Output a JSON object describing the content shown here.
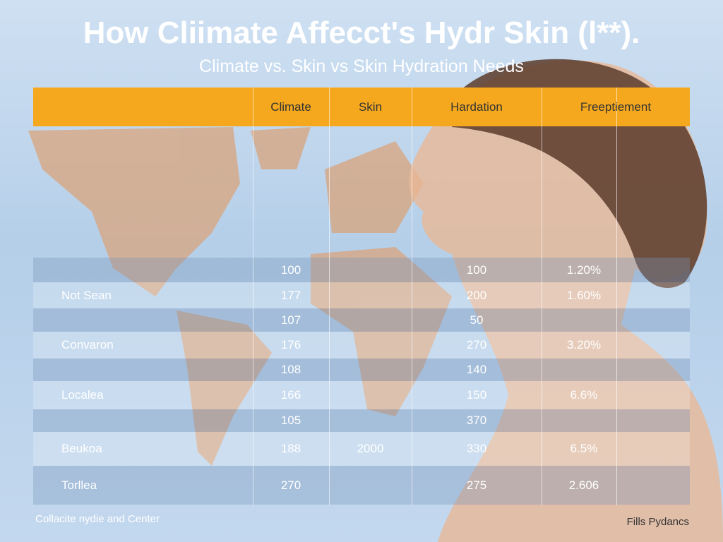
{
  "header": {
    "title": "How Cliimate Affecct's Hydr Skin (l**).",
    "subtitle": "Climate vs. Skin vs Skin Hydration Needs"
  },
  "table": {
    "columns": [
      null,
      "Climate",
      "Skin",
      "Hardation",
      "Freeptiement"
    ],
    "rows": [
      [
        null,
        "100",
        null,
        "100",
        "1.20%"
      ],
      [
        "Not Sean",
        "177",
        null,
        "200",
        "1.60%"
      ],
      [
        null,
        "107",
        null,
        "50",
        null
      ],
      [
        "Convaron",
        "176",
        null,
        "270",
        "3.20%"
      ],
      [
        null,
        "108",
        null,
        "140",
        null
      ],
      [
        "Localea",
        "166",
        null,
        "150",
        "6.6%"
      ],
      [
        null,
        "105",
        null,
        "370",
        null
      ],
      [
        "Beukoa",
        "188",
        "2000",
        "330",
        "6.5%"
      ],
      [
        "Torllea",
        "270",
        null,
        "275",
        "2.606"
      ]
    ]
  },
  "footer": {
    "left": "Collacite nydie and Center",
    "right": "Fills Pydancs"
  }
}
